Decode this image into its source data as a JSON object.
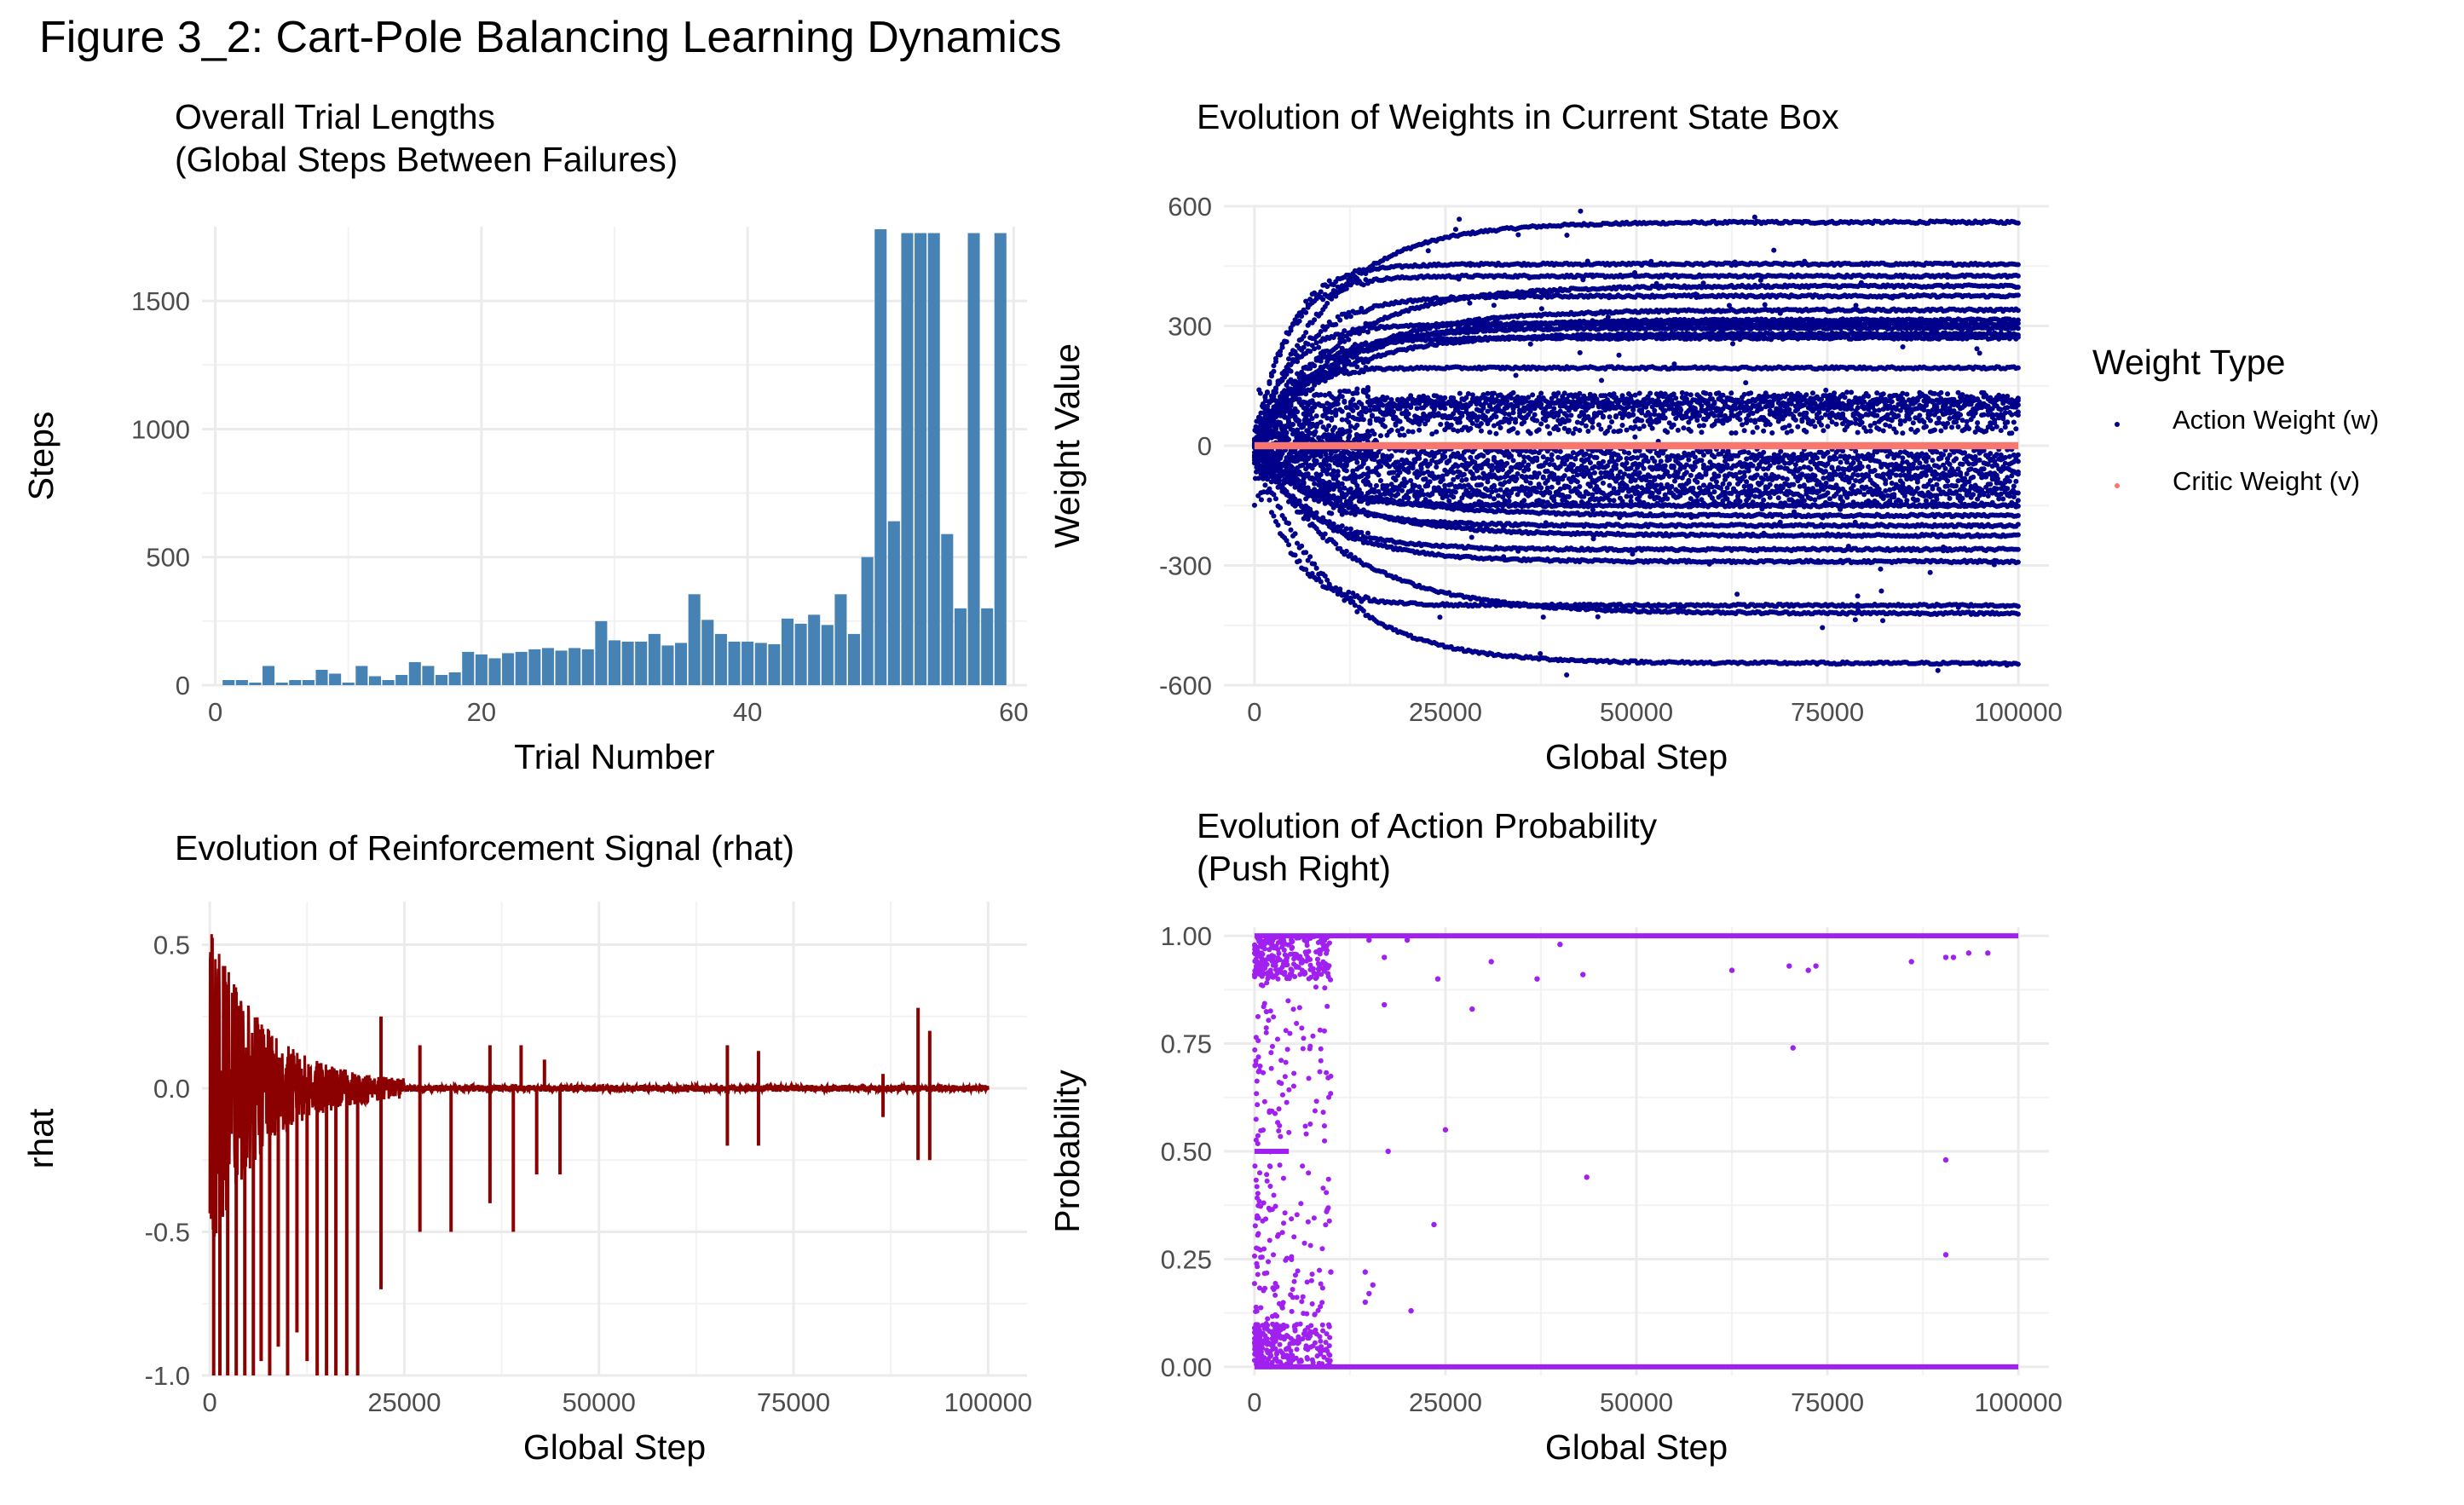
{
  "figure": {
    "title": "Figure 3_2: Cart-Pole Balancing Learning Dynamics"
  },
  "chart_data": [
    {
      "id": "trial-lengths",
      "type": "bar",
      "title": "Overall Trial Lengths\n(Global Steps Between Failures)",
      "xlabel": "Trial Number",
      "ylabel": "Steps",
      "xlim": [
        -1,
        61
      ],
      "ylim": [
        0,
        1790
      ],
      "xticks": [
        0,
        20,
        40,
        60
      ],
      "yticks": [
        0,
        500,
        1000,
        1500
      ],
      "grid": true,
      "color": "#4682B4",
      "x": [
        1,
        2,
        3,
        4,
        5,
        6,
        7,
        8,
        9,
        10,
        11,
        12,
        13,
        14,
        15,
        16,
        17,
        18,
        19,
        20,
        21,
        22,
        23,
        24,
        25,
        26,
        27,
        28,
        29,
        30,
        31,
        32,
        33,
        34,
        35,
        36,
        37,
        38,
        39,
        40,
        41,
        42,
        43,
        44,
        45,
        46,
        47,
        48,
        49,
        50,
        51,
        52,
        53,
        54,
        55,
        56,
        57,
        58,
        59
      ],
      "values": [
        20,
        20,
        10,
        75,
        10,
        20,
        20,
        60,
        45,
        10,
        75,
        35,
        20,
        40,
        90,
        75,
        40,
        50,
        130,
        120,
        105,
        125,
        130,
        140,
        145,
        135,
        145,
        140,
        250,
        175,
        170,
        170,
        200,
        155,
        165,
        355,
        255,
        200,
        170,
        170,
        165,
        160,
        260,
        240,
        275,
        235,
        355,
        200,
        500,
        1780,
        640,
        1765,
        1765,
        1765,
        590,
        300,
        1765,
        300,
        1765
      ]
    },
    {
      "id": "weights",
      "type": "scatter",
      "title": "Evolution of Weights in Current State Box",
      "xlabel": "Global Step",
      "ylabel": "Weight Value",
      "xlim": [
        -4000,
        104000
      ],
      "ylim": [
        -600,
        600
      ],
      "xticks": [
        0,
        25000,
        50000,
        75000,
        100000
      ],
      "yticks": [
        -600,
        -300,
        0,
        300,
        600
      ],
      "grid": true,
      "legend": {
        "title": "Weight Type",
        "position": "right"
      },
      "series": [
        {
          "name": "Action Weight (w)",
          "color": "#00008B",
          "final_values": [
            560,
            455,
            425,
            400,
            375,
            340,
            315,
            305,
            295,
            280,
            270,
            195,
            120,
            105,
            100,
            80,
            55,
            -20,
            -45,
            -70,
            -90,
            -115,
            -130,
            -150,
            -175,
            -200,
            -225,
            -260,
            -290,
            -400,
            -420,
            -545
          ]
        },
        {
          "name": "Critic Weight (v)",
          "color": "#F8766D",
          "final_values": [
            0
          ]
        }
      ]
    },
    {
      "id": "rhat",
      "type": "line",
      "title": "Evolution of Reinforcement Signal (rhat)",
      "xlabel": "Global Step",
      "ylabel": "rhat",
      "xlim": [
        -1000,
        105000
      ],
      "ylim": [
        -1.0,
        0.65
      ],
      "xticks": [
        0,
        25000,
        50000,
        75000,
        100000
      ],
      "yticks": [
        -1.0,
        -0.5,
        0.0,
        0.5
      ],
      "grid": true,
      "color": "#8B0000",
      "failure_spikes": [
        {
          "x": 500,
          "y": -1.0
        },
        {
          "x": 1300,
          "y": -1.0
        },
        {
          "x": 2300,
          "y": -1.0
        },
        {
          "x": 3400,
          "y": -1.0
        },
        {
          "x": 4500,
          "y": -1.0
        },
        {
          "x": 5600,
          "y": -1.0
        },
        {
          "x": 6600,
          "y": -0.95
        },
        {
          "x": 7700,
          "y": -1.0
        },
        {
          "x": 8800,
          "y": -0.9
        },
        {
          "x": 10000,
          "y": -1.0
        },
        {
          "x": 11200,
          "y": -0.85
        },
        {
          "x": 12500,
          "y": -0.95
        },
        {
          "x": 13800,
          "y": -1.0
        },
        {
          "x": 15000,
          "y": -1.0
        },
        {
          "x": 16200,
          "y": -1.0
        },
        {
          "x": 17600,
          "y": -1.0
        },
        {
          "x": 19000,
          "y": -1.0
        },
        {
          "x": 22000,
          "y": -0.7
        },
        {
          "x": 27000,
          "y": -0.5
        },
        {
          "x": 31000,
          "y": -0.5
        },
        {
          "x": 36000,
          "y": -0.4
        },
        {
          "x": 39000,
          "y": -0.5
        },
        {
          "x": 42000,
          "y": -0.3
        },
        {
          "x": 45000,
          "y": -0.3
        },
        {
          "x": 66500,
          "y": -0.2
        },
        {
          "x": 70500,
          "y": -0.2
        },
        {
          "x": 86500,
          "y": -0.1
        },
        {
          "x": 91000,
          "y": -0.25
        },
        {
          "x": 92500,
          "y": -0.25
        }
      ],
      "positive_spikes": [
        {
          "x": 22000,
          "y": 0.25
        },
        {
          "x": 27000,
          "y": 0.15
        },
        {
          "x": 36000,
          "y": 0.15
        },
        {
          "x": 40000,
          "y": 0.15
        },
        {
          "x": 43000,
          "y": 0.1
        },
        {
          "x": 66500,
          "y": 0.15
        },
        {
          "x": 70500,
          "y": 0.13
        },
        {
          "x": 86500,
          "y": 0.05
        },
        {
          "x": 91000,
          "y": 0.28
        },
        {
          "x": 92500,
          "y": 0.2
        }
      ]
    },
    {
      "id": "action-prob",
      "type": "scatter",
      "title": "Evolution of Action Probability\n(Push Right)",
      "xlabel": "Global Step",
      "ylabel": "Probability",
      "xlim": [
        -4000,
        104000
      ],
      "ylim": [
        -0.02,
        1.02
      ],
      "xticks": [
        0,
        25000,
        50000,
        75000,
        100000
      ],
      "yticks": [
        0.0,
        0.25,
        0.5,
        0.75,
        1.0
      ],
      "grid": true,
      "color": "#A020F0",
      "scattered_points": [
        {
          "x": 9000,
          "y": 0.97
        },
        {
          "x": 15000,
          "y": 0.99
        },
        {
          "x": 17000,
          "y": 0.95
        },
        {
          "x": 20000,
          "y": 0.99
        },
        {
          "x": 24000,
          "y": 0.9
        },
        {
          "x": 31000,
          "y": 0.94
        },
        {
          "x": 37000,
          "y": 0.9
        },
        {
          "x": 40000,
          "y": 0.98
        },
        {
          "x": 43000,
          "y": 0.91
        },
        {
          "x": 62500,
          "y": 0.92
        },
        {
          "x": 70000,
          "y": 0.93
        },
        {
          "x": 72500,
          "y": 0.92
        },
        {
          "x": 73500,
          "y": 0.93
        },
        {
          "x": 86000,
          "y": 0.94
        },
        {
          "x": 90500,
          "y": 0.95
        },
        {
          "x": 91500,
          "y": 0.95
        },
        {
          "x": 93500,
          "y": 0.96
        },
        {
          "x": 96000,
          "y": 0.96
        },
        {
          "x": 17000,
          "y": 0.84
        },
        {
          "x": 28500,
          "y": 0.83
        },
        {
          "x": 70500,
          "y": 0.74
        },
        {
          "x": 17500,
          "y": 0.5
        },
        {
          "x": 25000,
          "y": 0.55
        },
        {
          "x": 43500,
          "y": 0.44
        },
        {
          "x": 90500,
          "y": 0.48
        },
        {
          "x": 23500,
          "y": 0.33
        },
        {
          "x": 90500,
          "y": 0.26
        },
        {
          "x": 10000,
          "y": 0.22
        },
        {
          "x": 20500,
          "y": 0.13
        },
        {
          "x": 14500,
          "y": 0.22
        },
        {
          "x": 15000,
          "y": 0.17
        },
        {
          "x": 15500,
          "y": 0.19
        },
        {
          "x": 14500,
          "y": 0.15
        }
      ]
    }
  ]
}
